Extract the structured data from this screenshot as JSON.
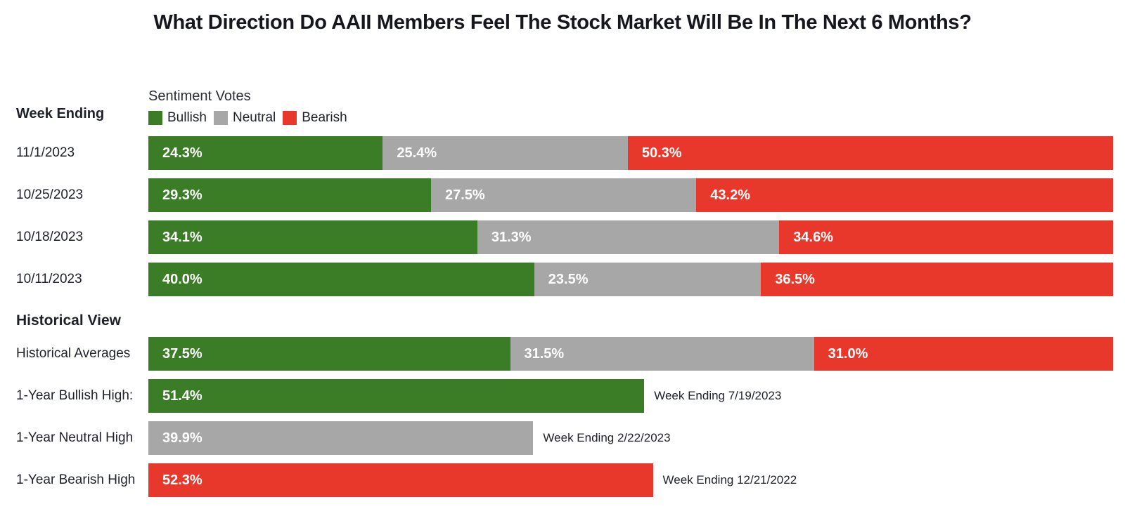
{
  "chart_data": {
    "type": "bar",
    "orientation": "horizontal-stacked",
    "title": "What Direction Do AAII Members Feel The Stock Market Will Be In The Next 6 Months?",
    "unit": "%",
    "xlim": [
      0,
      100
    ],
    "grid": false,
    "legend": {
      "title": "Sentiment Votes",
      "position": "top-left-of-plot",
      "entries": [
        {
          "label": "Bullish",
          "color": "#3a7d26"
        },
        {
          "label": "Neutral",
          "color": "#a7a7a7"
        },
        {
          "label": "Bearish",
          "color": "#e8382b"
        }
      ]
    },
    "sections": [
      {
        "header": "Week Ending",
        "rows": [
          {
            "label": "11/1/2023",
            "type": "stacked",
            "values": [
              {
                "series": "Bullish",
                "value": 24.3
              },
              {
                "series": "Neutral",
                "value": 25.4
              },
              {
                "series": "Bearish",
                "value": 50.3
              }
            ]
          },
          {
            "label": "10/25/2023",
            "type": "stacked",
            "values": [
              {
                "series": "Bullish",
                "value": 29.3
              },
              {
                "series": "Neutral",
                "value": 27.5
              },
              {
                "series": "Bearish",
                "value": 43.2
              }
            ]
          },
          {
            "label": "10/18/2023",
            "type": "stacked",
            "values": [
              {
                "series": "Bullish",
                "value": 34.1
              },
              {
                "series": "Neutral",
                "value": 31.3
              },
              {
                "series": "Bearish",
                "value": 34.6
              }
            ]
          },
          {
            "label": "10/11/2023",
            "type": "stacked",
            "values": [
              {
                "series": "Bullish",
                "value": 40.0
              },
              {
                "series": "Neutral",
                "value": 23.5
              },
              {
                "series": "Bearish",
                "value": 36.5
              }
            ]
          }
        ]
      },
      {
        "header": "Historical View",
        "rows": [
          {
            "label": "Historical Averages",
            "type": "stacked",
            "values": [
              {
                "series": "Bullish",
                "value": 37.5
              },
              {
                "series": "Neutral",
                "value": 31.5
              },
              {
                "series": "Bearish",
                "value": 31.0
              }
            ]
          },
          {
            "label": "1-Year Bullish High:",
            "type": "single",
            "series": "Bullish",
            "value": 51.4,
            "annotation": "Week Ending 7/19/2023"
          },
          {
            "label": "1-Year Neutral High",
            "type": "single",
            "series": "Neutral",
            "value": 39.9,
            "annotation": "Week Ending 2/22/2023"
          },
          {
            "label": "1-Year Bearish High",
            "type": "single",
            "series": "Bearish",
            "value": 52.3,
            "annotation": "Week Ending 12/21/2022"
          }
        ]
      }
    ]
  },
  "colors": {
    "bullish": "#3a7d26",
    "neutral": "#a7a7a7",
    "bearish": "#e8382b",
    "text": "#1e2127",
    "title": "#15171c",
    "background": "#ffffff",
    "bar_value_text": "#ffffff"
  }
}
